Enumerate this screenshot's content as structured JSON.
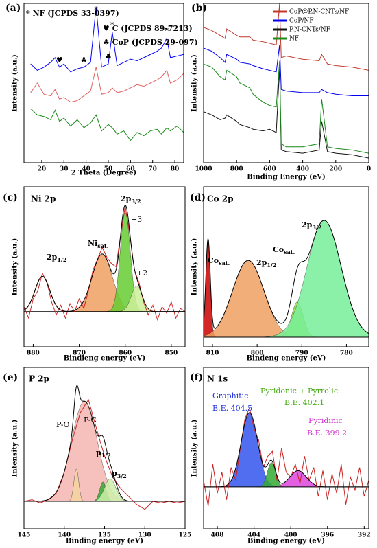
{
  "chart_data": [
    {
      "type": "line",
      "label": "(a)",
      "xlabel": "2 Theta (Degree)",
      "ylabel": "Intensity (a.u.)",
      "xlim": [
        12,
        84
      ],
      "ylim": [
        0,
        100
      ],
      "xticks": [
        20,
        30,
        40,
        50,
        60,
        70,
        80
      ],
      "x": [
        15,
        18,
        21,
        24,
        26,
        28,
        30,
        33,
        36,
        39,
        42,
        44.5,
        47,
        50,
        51.8,
        54,
        57,
        60,
        63,
        66,
        69,
        72,
        74,
        76.4,
        78,
        81,
        84
      ],
      "series": [
        {
          "color": "#0000ff",
          "values": [
            62,
            58,
            60,
            63,
            66,
            60,
            62,
            57,
            59,
            60,
            63,
            98,
            60,
            62,
            82,
            61,
            63,
            65,
            64,
            66,
            68,
            70,
            72,
            78,
            66,
            67,
            68
          ]
        },
        {
          "color": "#e06060",
          "values": [
            44,
            50,
            43,
            42,
            46,
            40,
            41,
            38,
            39,
            42,
            45,
            60,
            43,
            44,
            47,
            44,
            45,
            47,
            49,
            48,
            50,
            52,
            54,
            58,
            50,
            52,
            56
          ]
        },
        {
          "color": "#1a8a1a",
          "values": [
            34,
            30,
            29,
            27,
            33,
            26,
            28,
            23,
            27,
            22,
            25,
            30,
            20,
            24,
            22,
            18,
            20,
            14,
            19,
            17,
            20,
            21,
            18,
            22,
            20,
            23,
            19
          ]
        }
      ],
      "notes": [
        "* NF (JCPDS 33-0397)",
        "♥ C (JCPDS 89-7213)",
        "♣ CoP (JCPDS 29-097)"
      ],
      "peak_markers": [
        {
          "symbol": "♥",
          "x": 28
        },
        {
          "symbol": "♣",
          "x": 39
        },
        {
          "symbol": "*",
          "x": 44.5
        },
        {
          "symbol": "♣",
          "x": 50
        },
        {
          "symbol": "*",
          "x": 51.8
        },
        {
          "symbol": "*",
          "x": 76.4
        }
      ]
    },
    {
      "type": "line",
      "label": "(b)",
      "xlabel": "Binding Energy (eV)",
      "ylabel": "Intensity (a.u.)",
      "xlim": [
        1000,
        0
      ],
      "ylim": [
        0,
        100
      ],
      "xticks": [
        1000,
        800,
        600,
        400,
        200,
        0
      ],
      "legend": "upper right",
      "x": [
        1000,
        950,
        900,
        870,
        860,
        800,
        780,
        720,
        700,
        640,
        600,
        560,
        540,
        530,
        500,
        400,
        300,
        285,
        250,
        200,
        100,
        0
      ],
      "series": [
        {
          "name": "CoP@P,N-CNTs/NF",
          "color": "#c0392b",
          "values": [
            85,
            83,
            80,
            78,
            84,
            80,
            79,
            79,
            77,
            76,
            75,
            74,
            100,
            66,
            67,
            65,
            64,
            68,
            62,
            61,
            60,
            58
          ]
        },
        {
          "name": "CoP/NF",
          "color": "#0000ee",
          "values": [
            72,
            70,
            66,
            63,
            68,
            65,
            63,
            62,
            61,
            59,
            58,
            57,
            74,
            46,
            45,
            44,
            44,
            46,
            44,
            43,
            42,
            42
          ]
        },
        {
          "name": "P,N-CNTs/NF",
          "color": "#111111",
          "values": [
            32,
            30,
            27,
            28,
            30,
            26,
            24,
            22,
            21,
            20,
            21,
            19,
            60,
            8,
            7,
            6,
            8,
            26,
            7,
            6,
            5,
            3
          ]
        },
        {
          "name": "NF",
          "color": "#1a8a1a",
          "values": [
            62,
            60,
            54,
            52,
            58,
            54,
            50,
            47,
            43,
            38,
            36,
            35,
            64,
            12,
            10,
            10,
            12,
            40,
            10,
            9,
            8,
            6
          ]
        }
      ]
    },
    {
      "type": "xps",
      "label": "(c)",
      "title": "Ni 2p",
      "xlabel": "Bindieng energy (eV)",
      "ylabel": "Intensity (a.u.)",
      "xlim": [
        882,
        847
      ],
      "ylim": [
        0,
        100
      ],
      "xticks": [
        880,
        870,
        860,
        850
      ],
      "baseline": 22,
      "envelope_color": "#000000",
      "series": [
        {
          "color": "#cc2222",
          "x": [
            882,
            881,
            880,
            879,
            878,
            877,
            876,
            875,
            874,
            873,
            872,
            871,
            870,
            869,
            868,
            867,
            866,
            865,
            864,
            863,
            862,
            861,
            860,
            859,
            858,
            857,
            856,
            855,
            854,
            853,
            852,
            851,
            850,
            849,
            848,
            847
          ],
          "values": [
            25,
            18,
            30,
            35,
            46,
            40,
            28,
            20,
            26,
            18,
            27,
            22,
            30,
            24,
            35,
            48,
            55,
            62,
            56,
            52,
            50,
            70,
            88,
            70,
            48,
            40,
            28,
            20,
            26,
            17,
            25,
            21,
            28,
            18,
            24,
            22
          ]
        }
      ],
      "peaks": [
        {
          "center": 878,
          "height": 22,
          "width": 1.6,
          "color": "#8b3a1a",
          "fill": false
        },
        {
          "center": 865,
          "height": 36,
          "width": 2.2,
          "color": "#f0a060",
          "fill": true
        },
        {
          "center": 860,
          "height": 62,
          "width": 1.1,
          "color": "#66cc33",
          "fill": true
        },
        {
          "center": 857.5,
          "height": 16,
          "width": 1.2,
          "color": "#ccee99",
          "fill": true
        }
      ],
      "annotations": [
        {
          "text": "2p",
          "sub": "1/2"
        },
        {
          "text": "Ni",
          "sub": "sat."
        },
        {
          "text": "2p",
          "sub": "3/2"
        },
        {
          "text": "+3"
        },
        {
          "text": "+2"
        }
      ]
    },
    {
      "type": "xps",
      "label": "(d)",
      "title": "Co 2p",
      "xlabel": "Bindeng energy (eV)",
      "ylabel": "Intensity (a.u.)",
      "xlim": [
        812,
        775
      ],
      "ylim": [
        0,
        100
      ],
      "xticks": [
        810,
        800,
        790,
        780
      ],
      "baseline": 6,
      "envelope_color": "#000000",
      "series": [],
      "peaks": [
        {
          "center": 811,
          "height": 60,
          "width": 0.5,
          "color": "#cc0000",
          "fill": true
        },
        {
          "center": 802,
          "height": 48,
          "width": 3.5,
          "color": "#f0a060",
          "fill": true
        },
        {
          "center": 791,
          "height": 22,
          "width": 1.3,
          "color": "#99dd44",
          "fill": true
        },
        {
          "center": 785,
          "height": 73,
          "width": 3.8,
          "color": "#77ee99",
          "fill": true
        }
      ],
      "annotations": [
        {
          "text": "Co",
          "sub": "sat."
        },
        {
          "text": "2p",
          "sub": "1/2"
        },
        {
          "text": "Co",
          "sub": "sat."
        },
        {
          "text": "2p",
          "sub": "3/2"
        }
      ]
    },
    {
      "type": "xps",
      "label": "(e)",
      "title": "P 2p",
      "xlabel": "Binding energy (eV)",
      "ylabel": "Intensity (a.u.)",
      "xlim": [
        145,
        125
      ],
      "ylim": [
        0,
        100
      ],
      "xticks": [
        145,
        140,
        135,
        130,
        125
      ],
      "baseline": 17,
      "envelope_color": "#000000",
      "series": [
        {
          "color": "#cc2222",
          "x": [
            145,
            144,
            143,
            142,
            141,
            140,
            139,
            138,
            137,
            136,
            135,
            134,
            133,
            132,
            131,
            130,
            129,
            128,
            127,
            126,
            125
          ],
          "values": [
            17,
            18,
            16,
            18,
            22,
            35,
            55,
            72,
            80,
            62,
            45,
            32,
            25,
            20,
            15,
            12,
            17,
            16,
            17,
            16,
            17
          ]
        }
      ],
      "peaks": [
        {
          "center": 137.5,
          "height": 62,
          "width": 1.6,
          "color": "#f4b6b0",
          "fill": true
        },
        {
          "center": 138.5,
          "height": 20,
          "width": 0.3,
          "color": "#f5d5a0",
          "fill": true
        },
        {
          "center": 135.2,
          "height": 12,
          "width": 0.4,
          "color": "#33aa33",
          "fill": true
        },
        {
          "center": 134.3,
          "height": 14,
          "width": 0.7,
          "color": "#ccf0aa",
          "fill": true
        }
      ],
      "annotations": [
        {
          "text": "P-O"
        },
        {
          "text": "P-C"
        },
        {
          "text": "p",
          "sub": "1/2"
        },
        {
          "text": "p",
          "sub": "3/2"
        }
      ]
    },
    {
      "type": "xps",
      "label": "(f)",
      "title": "N 1s",
      "xlabel": "Binding energy (eV)",
      "ylabel": "Intensity (a.u.)",
      "xlim": [
        409.5,
        391.5
      ],
      "ylim": [
        0,
        100
      ],
      "xticks": [
        408,
        404,
        400,
        396,
        392
      ],
      "baseline": 26,
      "envelope_color": "#000000",
      "series": [
        {
          "color": "#cc2222",
          "x": [
            409.5,
            409,
            408.5,
            408,
            407.5,
            407,
            406.5,
            406,
            405.5,
            405,
            404.5,
            404,
            403.5,
            403,
            402.5,
            402,
            401.5,
            401,
            400.5,
            400,
            399.5,
            399,
            398.5,
            398,
            397.5,
            397,
            396.5,
            396,
            395.5,
            395,
            394.5,
            394,
            393.5,
            393,
            392.5,
            392,
            391.5
          ],
          "values": [
            30,
            14,
            40,
            22,
            35,
            18,
            38,
            30,
            50,
            68,
            75,
            62,
            55,
            38,
            45,
            48,
            30,
            50,
            35,
            32,
            40,
            28,
            45,
            30,
            38,
            20,
            36,
            18,
            34,
            22,
            40,
            15,
            32,
            24,
            38,
            20,
            30
          ]
        }
      ],
      "peaks": [
        {
          "center": 404.5,
          "height": 46,
          "width": 0.9,
          "color": "#3355ee",
          "fill": true
        },
        {
          "center": 402.1,
          "height": 15,
          "width": 0.45,
          "color": "#33aa33",
          "fill": true
        },
        {
          "center": 399.2,
          "height": 10,
          "width": 0.9,
          "color": "#dd44dd",
          "fill": true
        }
      ],
      "annotations": [
        {
          "text": "Graphitic",
          "color": "#2233dd"
        },
        {
          "text": "B.E. 404.5",
          "color": "#2233dd"
        },
        {
          "text": "Pyridonic + Pyrrolic",
          "color": "#44aa11"
        },
        {
          "text": "B.E. 402.1",
          "color": "#44aa11"
        },
        {
          "text": "Pyridinic",
          "color": "#cc33cc"
        },
        {
          "text": "B.E. 399.2",
          "color": "#cc33cc"
        }
      ]
    }
  ]
}
